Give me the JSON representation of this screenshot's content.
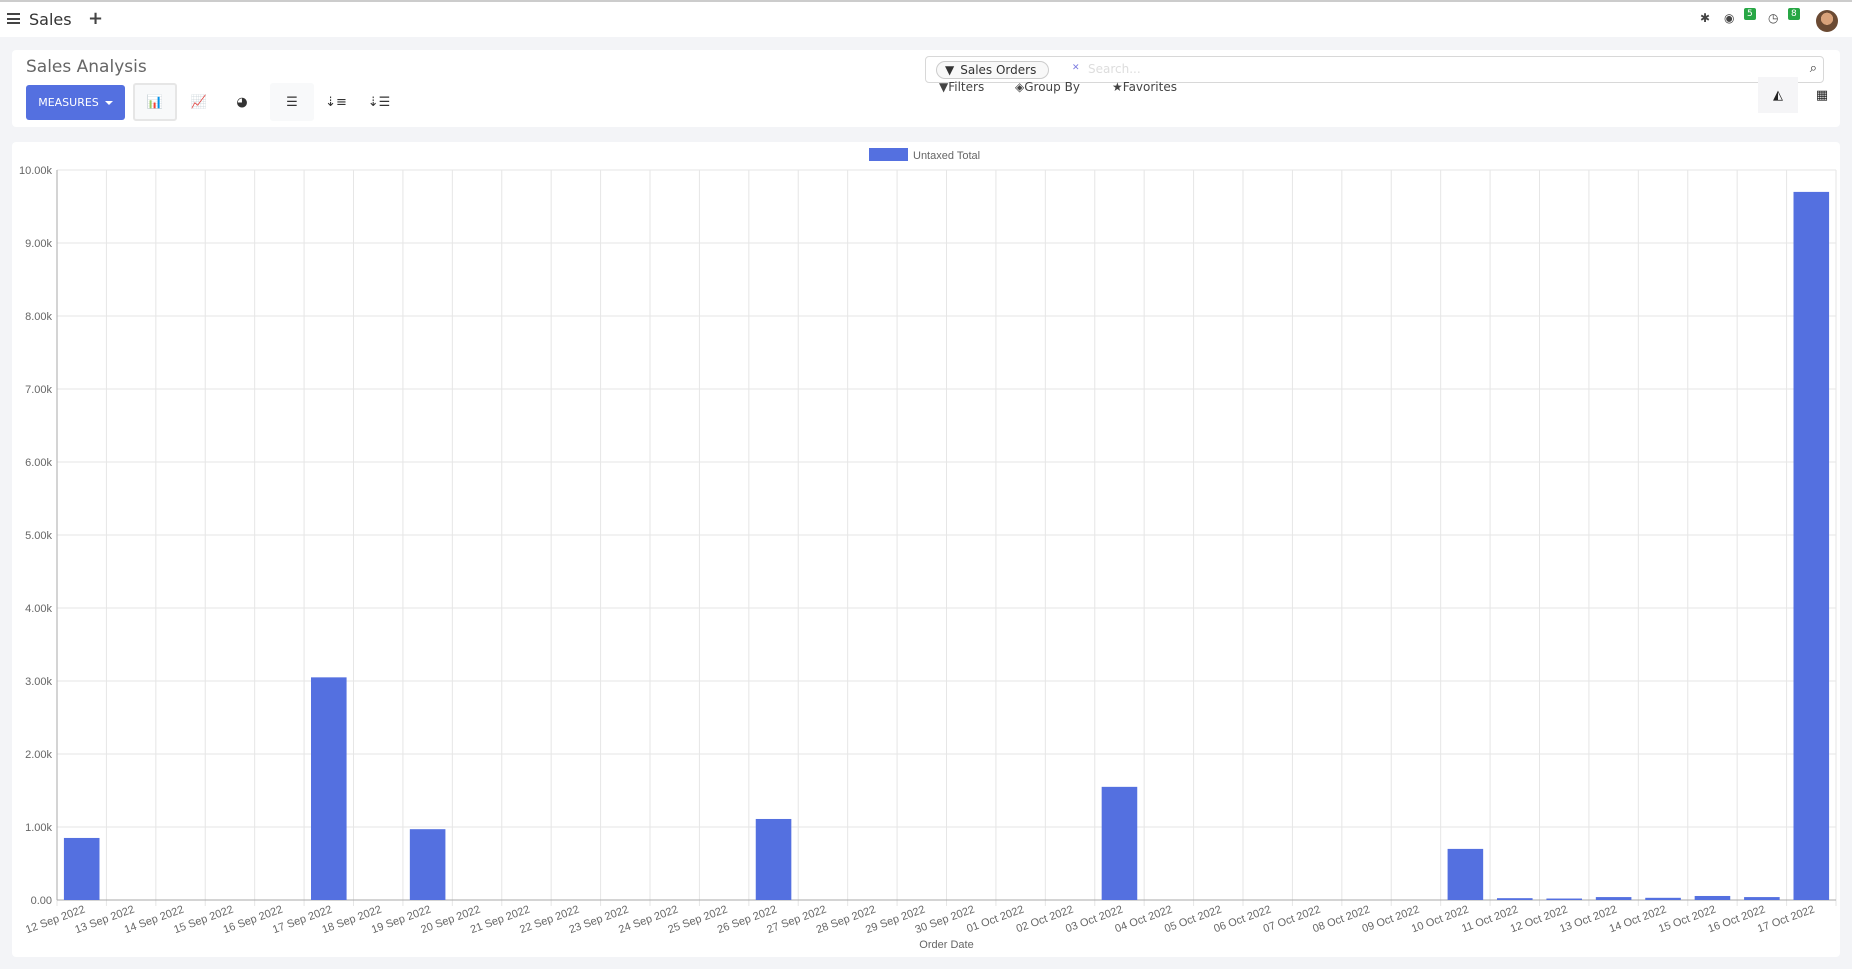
{
  "topbar": {
    "app_name": "Sales",
    "new_icon": "plus-icon",
    "debug_icon": "bug-icon",
    "messages_count": "5",
    "activities_count": "8"
  },
  "control": {
    "title": "Sales Analysis",
    "measures_label": "MEASURES",
    "search": {
      "facet": "Sales Orders",
      "placeholder": "Search..."
    },
    "filters_label": "Filters",
    "groupby_label": "Group By",
    "favorites_label": "Favorites"
  },
  "colors": {
    "accent": "#5470e0",
    "bar": "#5470e0"
  },
  "chart_data": {
    "type": "bar",
    "legend": [
      "Untaxed Total"
    ],
    "legend_position": "top",
    "xlabel": "Order Date",
    "ylabel": "",
    "ylim": [
      0,
      10000
    ],
    "yticks": [
      "0.00",
      "1.00k",
      "2.00k",
      "3.00k",
      "4.00k",
      "5.00k",
      "6.00k",
      "7.00k",
      "8.00k",
      "9.00k",
      "10.00k"
    ],
    "grid": true,
    "categories": [
      "12 Sep 2022",
      "13 Sep 2022",
      "14 Sep 2022",
      "15 Sep 2022",
      "16 Sep 2022",
      "17 Sep 2022",
      "18 Sep 2022",
      "19 Sep 2022",
      "20 Sep 2022",
      "21 Sep 2022",
      "22 Sep 2022",
      "23 Sep 2022",
      "24 Sep 2022",
      "25 Sep 2022",
      "26 Sep 2022",
      "27 Sep 2022",
      "28 Sep 2022",
      "29 Sep 2022",
      "30 Sep 2022",
      "01 Oct 2022",
      "02 Oct 2022",
      "03 Oct 2022",
      "04 Oct 2022",
      "05 Oct 2022",
      "06 Oct 2022",
      "07 Oct 2022",
      "08 Oct 2022",
      "09 Oct 2022",
      "10 Oct 2022",
      "11 Oct 2022",
      "12 Oct 2022",
      "13 Oct 2022",
      "14 Oct 2022",
      "15 Oct 2022",
      "16 Oct 2022",
      "17 Oct 2022"
    ],
    "series": [
      {
        "name": "Untaxed Total",
        "values": [
          850,
          0,
          0,
          0,
          0,
          3050,
          0,
          970,
          0,
          0,
          0,
          0,
          0,
          0,
          1110,
          0,
          0,
          0,
          0,
          0,
          0,
          1550,
          0,
          0,
          0,
          0,
          0,
          0,
          700,
          25,
          20,
          40,
          30,
          55,
          40,
          9700
        ]
      }
    ]
  }
}
